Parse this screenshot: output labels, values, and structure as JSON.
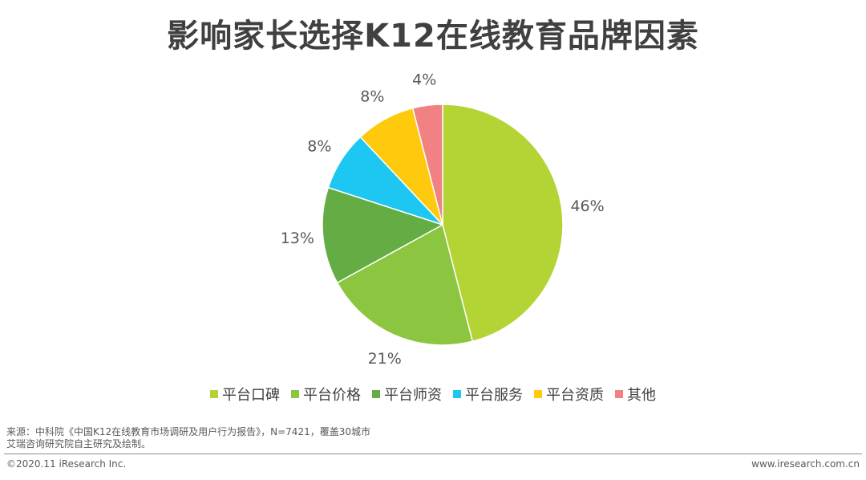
{
  "title": "影响家长选择K12在线教育品牌因素",
  "chart_data": {
    "type": "pie",
    "title": "影响家长选择K12在线教育品牌因素",
    "slices": [
      {
        "label": "平台口碑",
        "value": 46,
        "display": "46%",
        "color": "#b4d334"
      },
      {
        "label": "平台价格",
        "value": 21,
        "display": "21%",
        "color": "#8cc540"
      },
      {
        "label": "平台师资",
        "value": 13,
        "display": "13%",
        "color": "#64ac44"
      },
      {
        "label": "平台服务",
        "value": 8,
        "display": "8%",
        "color": "#1ec7f2"
      },
      {
        "label": "平台资质",
        "value": 8,
        "display": "8%",
        "color": "#ffc90e"
      },
      {
        "label": "其他",
        "value": 4,
        "display": "4%",
        "color": "#f18182"
      }
    ],
    "legend_position": "bottom",
    "start_angle": "12 o'clock",
    "direction": "clockwise"
  },
  "source": {
    "line1": "来源：中科院《中国K12在线教育市场调研及用户行为报告》，N=7421，覆盖30城市",
    "line2": "艾瑞咨询研究院自主研究及绘制。"
  },
  "footer": {
    "copyright": "©2020.11 iResearch Inc.",
    "website": "www.iresearch.com.cn"
  }
}
